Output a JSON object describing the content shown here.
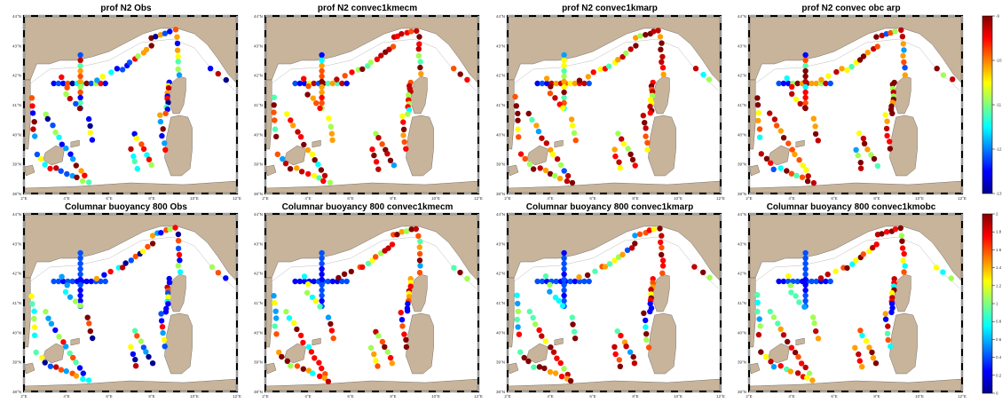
{
  "figure": {
    "row_titles": [
      [
        "prof N2 Obs",
        "prof N2 convec1kmecm",
        "prof N2 convec1kmarp",
        "prof N2 convec obc arp"
      ],
      [
        "Columnar buoyancy 800 Obs",
        "Columnar buoyancy 800 convec1kmecm",
        "Columnar buoyancy 800 convec1kmarp",
        "Columnar buoyancy 800 convec1kmobc"
      ]
    ],
    "colors": {
      "land": "#c8b49a",
      "sea": "#ffffff",
      "coast": "#555555",
      "frame": "#000000"
    }
  },
  "chart_data": [
    {
      "type": "scatter",
      "title": "prof N2 Obs",
      "colormap": "jet",
      "x_ticks": [
        "2°E",
        "4°E",
        "6°E",
        "8°E",
        "10°E",
        "12°E"
      ],
      "y_ticks": [
        "44°N",
        "43°N",
        "42°N",
        "41°N",
        "40°N",
        "39°N",
        "38°N"
      ]
    },
    {
      "type": "scatter",
      "title": "prof N2 convec1kmecm",
      "colormap": "jet",
      "x_ticks": [
        "2°E",
        "4°E",
        "6°E",
        "8°E",
        "10°E",
        "12°E"
      ],
      "y_ticks": [
        "44°N",
        "43°N",
        "42°N",
        "41°N",
        "40°N",
        "39°N",
        "38°N"
      ]
    },
    {
      "type": "scatter",
      "title": "prof N2 convec1kmarp",
      "colormap": "jet",
      "x_ticks": [
        "2°E",
        "4°E",
        "6°E",
        "8°E",
        "10°E",
        "12°E"
      ],
      "y_ticks": [
        "44°N",
        "43°N",
        "42°N",
        "41°N",
        "40°N",
        "39°N",
        "38°N"
      ]
    },
    {
      "type": "scatter",
      "title": "prof N2 convec obc arp",
      "colormap": "jet",
      "x_ticks": [
        "2°E",
        "4°E",
        "6°E",
        "8°E",
        "10°E",
        "12°E"
      ],
      "y_ticks": [
        "44°N",
        "43°N",
        "42°N",
        "41°N",
        "40°N",
        "39°N",
        "38°N"
      ],
      "colorbar": {
        "ticks": [
          "-9",
          "-10",
          "-11",
          "-12",
          "-13"
        ]
      }
    },
    {
      "type": "scatter",
      "title": "Columnar buoyancy 800 Obs",
      "colormap": "jet",
      "x_ticks": [
        "2°E",
        "4°E",
        "6°E",
        "8°E",
        "10°E",
        "12°E"
      ],
      "y_ticks": [
        "44°N",
        "43°N",
        "42°N",
        "41°N",
        "40°N",
        "39°N",
        "38°N"
      ]
    },
    {
      "type": "scatter",
      "title": "Columnar buoyancy 800 convec1kmecm",
      "colormap": "jet",
      "x_ticks": [
        "2°E",
        "4°E",
        "6°E",
        "8°E",
        "10°E",
        "12°E"
      ],
      "y_ticks": [
        "44°N",
        "43°N",
        "42°N",
        "41°N",
        "40°N",
        "39°N",
        "38°N"
      ]
    },
    {
      "type": "scatter",
      "title": "Columnar buoyancy 800 convec1kmarp",
      "colormap": "jet",
      "x_ticks": [
        "2°E",
        "4°E",
        "6°E",
        "8°E",
        "10°E",
        "12°E"
      ],
      "y_ticks": [
        "44°N",
        "43°N",
        "42°N",
        "41°N",
        "40°N",
        "39°N",
        "38°N"
      ]
    },
    {
      "type": "scatter",
      "title": "Columnar buoyancy 800 convec1kmobc",
      "colormap": "jet",
      "x_ticks": [
        "2°E",
        "4°E",
        "6°E",
        "8°E",
        "10°E",
        "12°E"
      ],
      "y_ticks": [
        "44°N",
        "43°N",
        "42°N",
        "41°N",
        "40°N",
        "39°N",
        "38°N"
      ],
      "colorbar": {
        "ticks": [
          "2",
          "1.8",
          "1.6",
          "1.4",
          "1.2",
          "1",
          "0.8",
          "0.6",
          "0.4",
          "0.2",
          "0"
        ]
      }
    }
  ]
}
